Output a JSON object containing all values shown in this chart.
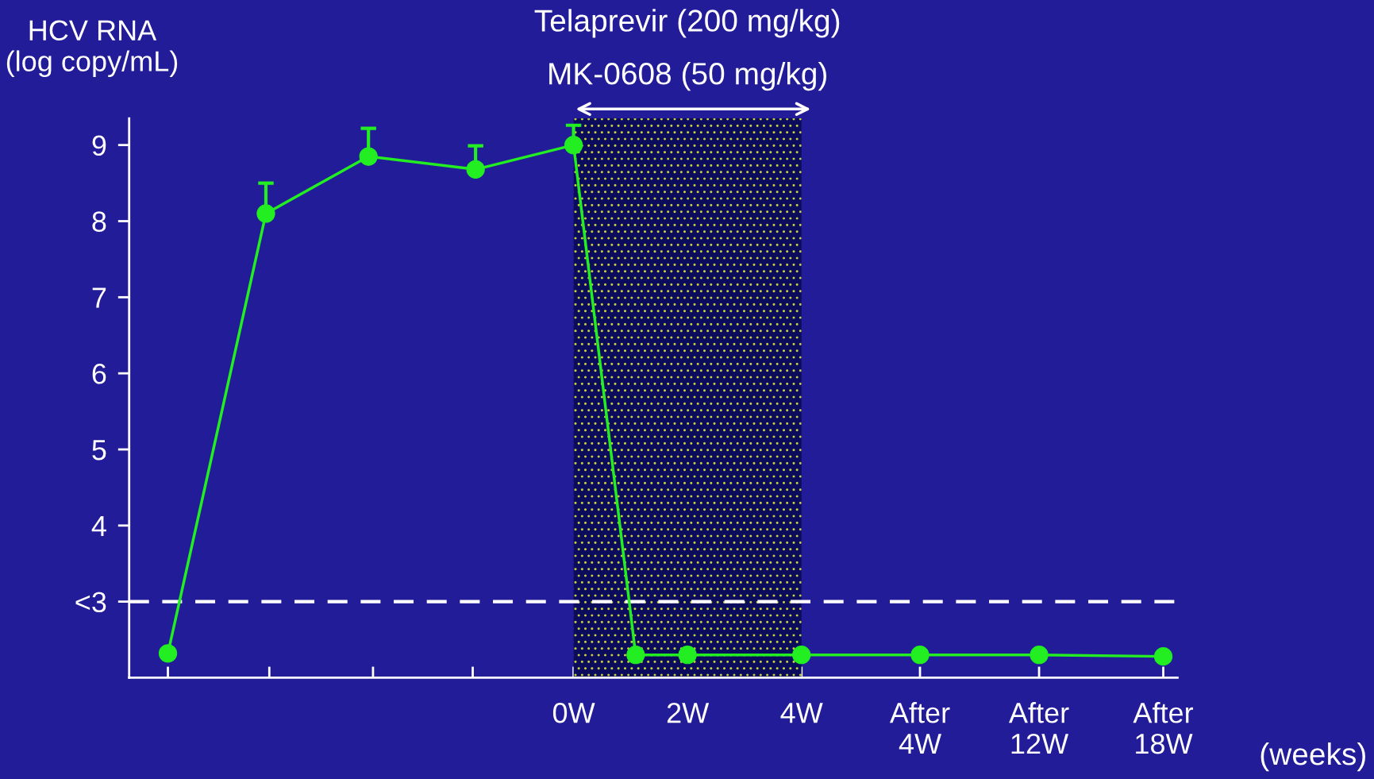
{
  "chart_data": {
    "type": "line",
    "annotations": [
      "Telaprevir (200 mg/kg)",
      "MK-0608 (50 mg/kg)"
    ],
    "xlabel": "(weeks)",
    "ylabel": "HCV RNA\n(log copy/mL)",
    "x": [
      -7.12,
      -5.4,
      -3.6,
      -1.72,
      0,
      1.09,
      2,
      4,
      6.08,
      8.17,
      10.35
    ],
    "series": [
      {
        "color": "#22ee22",
        "values": [
          2.32,
          8.1,
          8.85,
          8.68,
          9.0,
          2.3,
          2.3,
          2.3,
          2.3,
          2.3,
          2.28
        ],
        "errors": [
          null,
          [
            8.1,
            8.5
          ],
          [
            8.85,
            9.22
          ],
          [
            8.68,
            8.99
          ],
          [
            9.0,
            9.26
          ],
          null,
          null,
          null,
          null,
          null,
          null
        ]
      }
    ],
    "marker": "circle",
    "line_style": "solid",
    "grid": false,
    "legend": false,
    "xlim": [
      -7.8,
      10.6
    ],
    "xticks": [
      {
        "value": -7.12,
        "label": null
      },
      {
        "value": -5.34,
        "label": null
      },
      {
        "value": -3.52,
        "label": null
      },
      {
        "value": -1.77,
        "label": null
      },
      {
        "value": 0,
        "label": "0W"
      },
      {
        "value": 2,
        "label": "2W"
      },
      {
        "value": 4,
        "label": "4W"
      },
      {
        "value": 6.08,
        "label": "After\n4W"
      },
      {
        "value": 8.17,
        "label": "After\n12W"
      },
      {
        "value": 10.35,
        "label": "After\n18W"
      }
    ],
    "ylim": [
      2,
      9.35
    ],
    "yticks": [
      {
        "value": 3,
        "label": "<3"
      },
      4,
      5,
      6,
      7,
      8,
      9
    ],
    "ref_lines": [
      {
        "axis": "y",
        "value": 3,
        "color": "#ffffff",
        "line_style": "dashed"
      }
    ],
    "bands": [
      {
        "axis": "x",
        "from": 0,
        "to": 4,
        "color": "#0c0c5c"
      }
    ]
  }
}
